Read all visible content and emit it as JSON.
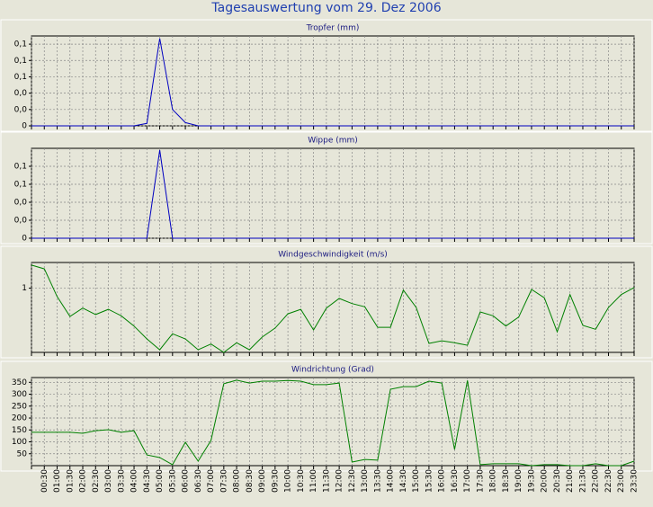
{
  "title": "Tagesauswertung vom 29. Dez 2006",
  "chart_data": [
    {
      "type": "line",
      "title": "Tropfer (mm)",
      "color": "#0000c0",
      "ylim": [
        0,
        0.11
      ],
      "yticks": [
        0,
        {
          "value": 0.02,
          "label": "0,0"
        },
        {
          "value": 0.04,
          "label": "0,0"
        },
        {
          "value": 0.06,
          "label": "0,1"
        },
        {
          "value": 0.08,
          "label": "0,1"
        },
        {
          "value": 0.1,
          "label": "0,1"
        }
      ],
      "grid": true,
      "values": [
        0,
        0,
        0,
        0,
        0,
        0,
        0,
        0,
        0,
        0.003,
        0.107,
        0.02,
        0.004,
        0,
        0,
        0,
        0,
        0,
        0,
        0,
        0,
        0,
        0,
        0,
        0,
        0,
        0,
        0,
        0,
        0,
        0,
        0,
        0,
        0,
        0,
        0,
        0,
        0,
        0,
        0,
        0,
        0,
        0,
        0,
        0,
        0,
        0,
        0
      ]
    },
    {
      "type": "line",
      "title": "Wippe (mm)",
      "color": "#0000c0",
      "ylim": [
        0,
        0.1
      ],
      "yticks": [
        0,
        {
          "value": 0.02,
          "label": "0,0"
        },
        {
          "value": 0.04,
          "label": "0,0"
        },
        {
          "value": 0.06,
          "label": "0,1"
        },
        {
          "value": 0.08,
          "label": "0,1"
        }
      ],
      "grid": true,
      "values": [
        0,
        0,
        0,
        0,
        0,
        0,
        0,
        0,
        0,
        0,
        0.098,
        0,
        0,
        0,
        0,
        0,
        0,
        0,
        0,
        0,
        0,
        0,
        0,
        0,
        0,
        0,
        0,
        0,
        0,
        0,
        0,
        0,
        0,
        0,
        0,
        0,
        0,
        0,
        0,
        0,
        0,
        0,
        0,
        0,
        0,
        0,
        0,
        0
      ]
    },
    {
      "type": "line",
      "title": "Windgeschwindigkeit (m/s)",
      "color": "#008000",
      "ylim": [
        0,
        1.4
      ],
      "yticks": [
        1
      ],
      "grid": true,
      "values": [
        1.36,
        1.3,
        0.87,
        0.56,
        0.69,
        0.59,
        0.67,
        0.57,
        0.41,
        0.21,
        0.04,
        0.29,
        0.21,
        0.04,
        0.13,
        0,
        0.15,
        0.04,
        0.24,
        0.38,
        0.6,
        0.67,
        0.35,
        0.69,
        0.84,
        0.76,
        0.71,
        0.39,
        0.39,
        0.97,
        0.7,
        0.14,
        0.18,
        0.15,
        0.11,
        0.63,
        0.57,
        0.41,
        0.55,
        0.98,
        0.85,
        0.32,
        0.9,
        0.42,
        0.36,
        0.7,
        0.9,
        1.01
      ]
    },
    {
      "type": "line",
      "title": "Windrichtung (Grad)",
      "color": "#008000",
      "ylim": [
        0,
        370
      ],
      "yticks": [
        50,
        100,
        150,
        200,
        250,
        300,
        350
      ],
      "grid": true,
      "categories": [
        null,
        "00:30",
        "01:00",
        "01:30",
        "02:00",
        "02:30",
        "03:00",
        "03:30",
        "04:00",
        "04:30",
        "05:00",
        "05:30",
        "06:00",
        "06:30",
        "07:00",
        "07:30",
        "08:00",
        "08:30",
        "09:00",
        "09:30",
        "10:00",
        "10:30",
        "11:00",
        "11:30",
        "12:00",
        "12:30",
        "13:00",
        "13:30",
        "14:00",
        "14:30",
        "15:00",
        "15:30",
        "16:00",
        "16:30",
        "17:00",
        "17:30",
        "18:00",
        "18:30",
        "19:00",
        "19:30",
        "20:00",
        "20:30",
        "21:00",
        "21:30",
        "22:00",
        "22:30",
        "23:00",
        "23:30"
      ],
      "values": [
        140,
        140,
        140,
        140,
        136,
        147,
        151,
        140,
        147,
        45,
        34,
        4,
        98,
        19,
        106,
        344,
        359,
        347,
        355,
        355,
        358,
        355,
        340,
        340,
        347,
        15,
        26,
        23,
        321,
        332,
        332,
        355,
        347,
        68,
        358,
        4,
        8,
        8,
        8,
        0,
        4,
        4,
        0,
        0,
        8,
        0,
        0,
        19
      ]
    }
  ]
}
